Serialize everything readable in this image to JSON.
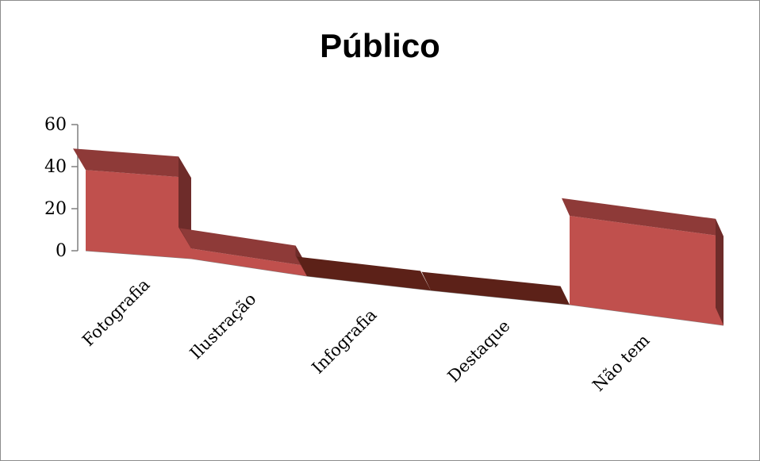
{
  "chart_data": {
    "type": "bar",
    "title": "Público",
    "categories": [
      "Fotografia",
      "Ilustração",
      "Infografia",
      "Destaque",
      "Não tem"
    ],
    "values": [
      40,
      5,
      0,
      0,
      38
    ],
    "y_ticks": [
      "0",
      "20",
      "40",
      "60"
    ],
    "ylim": [
      0,
      60
    ],
    "grid": false,
    "legend": "none",
    "colors": {
      "front": "#c0504d",
      "top": "#8e3a38",
      "side": "#6e2c2a",
      "floor": "#5c2118",
      "axis": "#7f7f7f"
    }
  }
}
